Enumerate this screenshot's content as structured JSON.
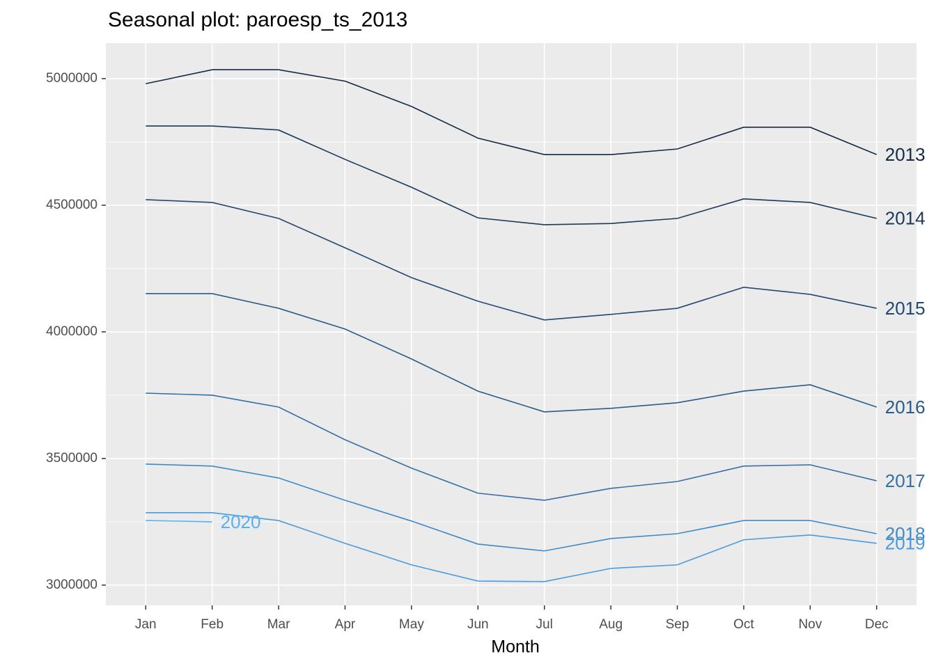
{
  "chart_data": {
    "type": "line",
    "title": "Seasonal plot: paroesp_ts_2013",
    "x_label": "Month",
    "categories": [
      "Jan",
      "Feb",
      "Mar",
      "Apr",
      "May",
      "Jun",
      "Jul",
      "Aug",
      "Sep",
      "Oct",
      "Nov",
      "Dec"
    ],
    "ylim": [
      2920000,
      5140000
    ],
    "yticks": [
      3000000,
      3500000,
      4000000,
      4500000,
      5000000
    ],
    "grid": true,
    "series": [
      {
        "name": "2013",
        "color": "#132B43",
        "values": [
          4980000,
          5035000,
          5035000,
          4990000,
          4890000,
          4765000,
          4700000,
          4700000,
          4722000,
          4808000,
          4808000,
          4700000
        ]
      },
      {
        "name": "2014",
        "color": "#1A3957",
        "values": [
          4813000,
          4813000,
          4797000,
          4681000,
          4571000,
          4450000,
          4423000,
          4428000,
          4448000,
          4525000,
          4511000,
          4448000
        ]
      },
      {
        "name": "2015",
        "color": "#22486E",
        "values": [
          4522000,
          4511000,
          4448000,
          4332000,
          4214000,
          4121000,
          4047000,
          4069000,
          4093000,
          4176000,
          4148000,
          4093000
        ]
      },
      {
        "name": "2016",
        "color": "#2B5A87",
        "values": [
          4151000,
          4151000,
          4093000,
          4011000,
          3893000,
          3766000,
          3684000,
          3698000,
          3720000,
          3766000,
          3791000,
          3703000
        ]
      },
      {
        "name": "2017",
        "color": "#356FA4",
        "values": [
          3758000,
          3750000,
          3703000,
          3574000,
          3462000,
          3363000,
          3335000,
          3382000,
          3409000,
          3470000,
          3475000,
          3412000
        ]
      },
      {
        "name": "2018",
        "color": "#3F89C6",
        "values": [
          3478000,
          3470000,
          3423000,
          3335000,
          3253000,
          3162000,
          3135000,
          3184000,
          3203000,
          3255000,
          3255000,
          3203000
        ]
      },
      {
        "name": "2019",
        "color": "#4A9BDD",
        "values": [
          3286000,
          3286000,
          3255000,
          3165000,
          3080000,
          3016000,
          3014000,
          3066000,
          3080000,
          3179000,
          3198000,
          3165000
        ]
      },
      {
        "name": "2020",
        "color": "#56B1F7",
        "values": [
          3255000,
          3250000,
          null,
          null,
          null,
          null,
          null,
          null,
          null,
          null,
          null,
          null
        ]
      }
    ]
  }
}
